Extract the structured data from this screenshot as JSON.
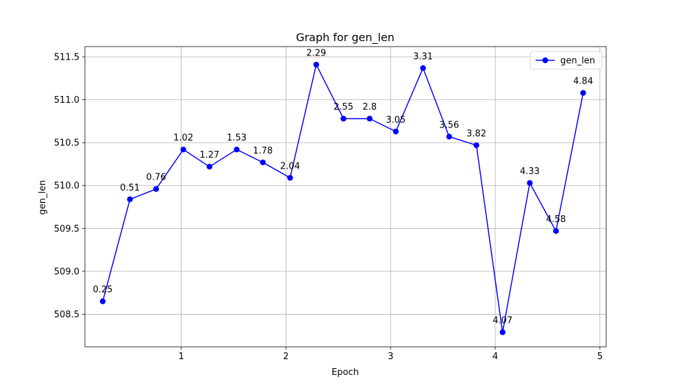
{
  "chart_data": {
    "type": "line",
    "title": "Graph for gen_len",
    "xlabel": "Epoch",
    "ylabel": "gen_len",
    "xlim": [
      0.08,
      5.06
    ],
    "ylim": [
      508.12,
      511.62
    ],
    "xticks": [
      1,
      2,
      3,
      4,
      5
    ],
    "yticks": [
      508.5,
      509.0,
      509.5,
      510.0,
      510.5,
      511.0,
      511.5
    ],
    "ytick_labels": [
      "508.5",
      "509.0",
      "509.5",
      "510.0",
      "510.5",
      "511.0",
      "511.5"
    ],
    "grid": true,
    "legend_position": "top-right",
    "color": "#0000ff",
    "series": [
      {
        "name": "gen_len",
        "x": [
          0.25,
          0.51,
          0.76,
          1.02,
          1.27,
          1.53,
          1.78,
          2.04,
          2.29,
          2.55,
          2.8,
          3.05,
          3.31,
          3.56,
          3.82,
          4.07,
          4.33,
          4.58,
          4.84
        ],
        "y": [
          508.65,
          509.84,
          509.96,
          510.42,
          510.22,
          510.42,
          510.27,
          510.09,
          511.41,
          510.78,
          510.78,
          510.63,
          511.37,
          510.57,
          510.47,
          508.29,
          510.03,
          509.47,
          511.08
        ],
        "point_labels": [
          "0.25",
          "0.51",
          "0.76",
          "1.02",
          "1.27",
          "1.53",
          "1.78",
          "2.04",
          "2.29",
          "2.55",
          "2.8",
          "3.05",
          "3.31",
          "3.56",
          "3.82",
          "4.07",
          "4.33",
          "4.58",
          "4.84"
        ]
      }
    ]
  }
}
